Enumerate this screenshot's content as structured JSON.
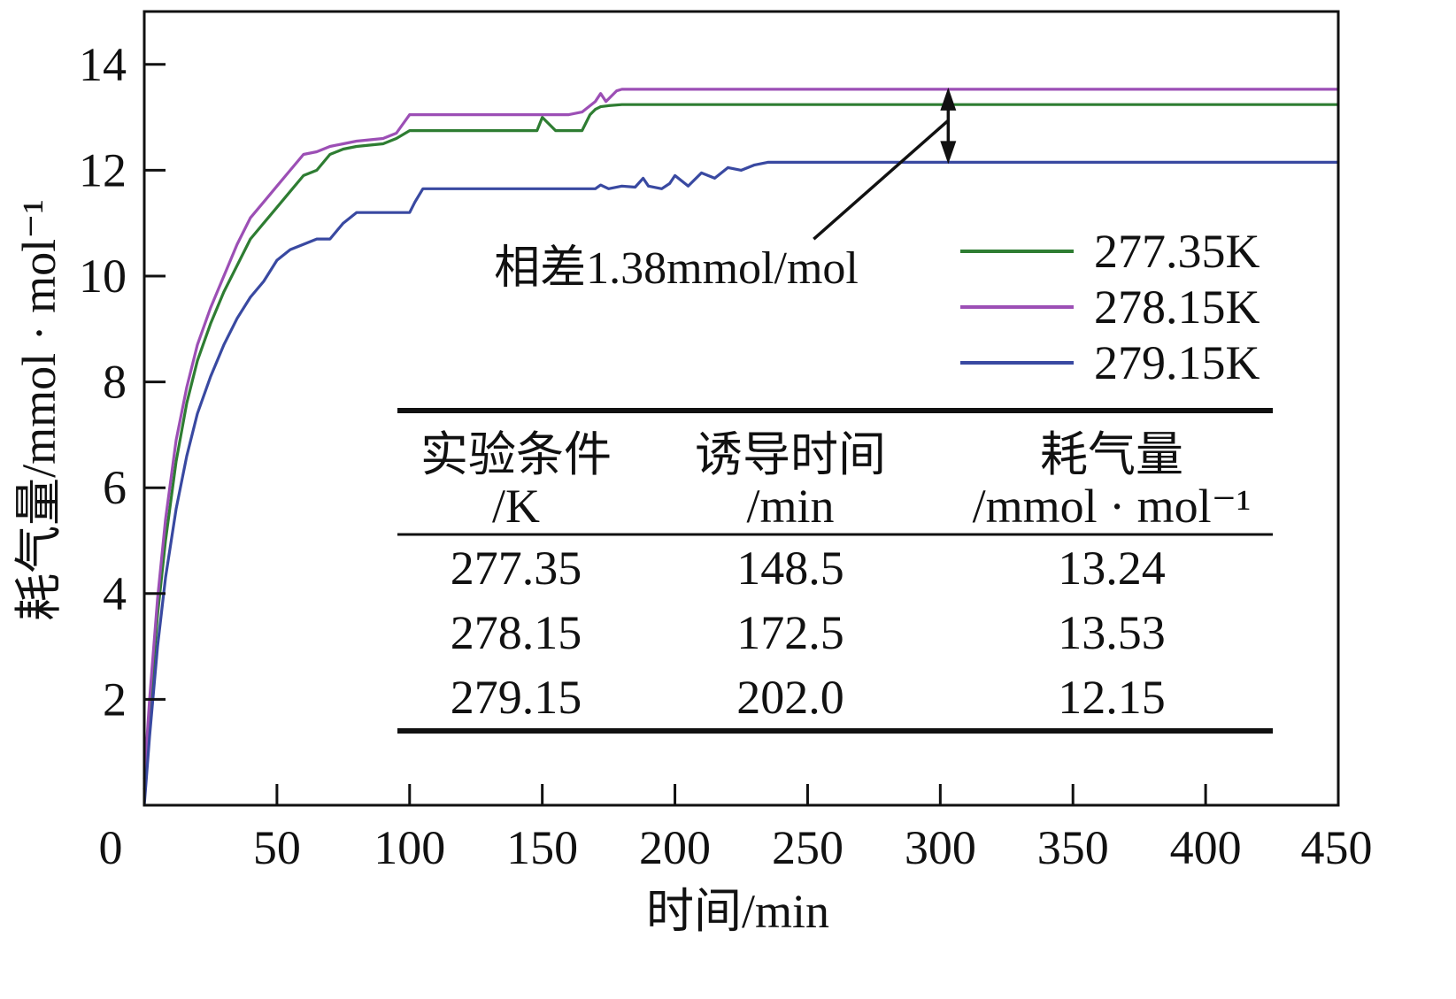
{
  "chart_data": {
    "type": "line",
    "title": "",
    "xlabel": "时间/min",
    "ylabel": "耗气量/mmol · mol⁻¹",
    "xlim": [
      0,
      450
    ],
    "ylim": [
      0,
      15
    ],
    "x_ticks": [
      0,
      50,
      100,
      150,
      200,
      250,
      300,
      350,
      400,
      450
    ],
    "y_ticks": [
      2,
      4,
      6,
      8,
      10,
      12,
      14
    ],
    "x_tick_labels": [
      "0",
      "50",
      "100",
      "150",
      "200",
      "250",
      "300",
      "350",
      "400",
      "450"
    ],
    "y_tick_labels": [
      "2",
      "4",
      "6",
      "8",
      "10",
      "12",
      "14"
    ],
    "legend_position": "right",
    "series": [
      {
        "name": "277.35K",
        "color": "#2e7d32",
        "x": [
          0,
          2,
          5,
          8,
          12,
          16,
          20,
          25,
          30,
          35,
          40,
          45,
          50,
          55,
          60,
          65,
          70,
          75,
          80,
          90,
          95,
          100,
          110,
          120,
          130,
          140,
          148,
          150,
          152,
          155,
          160,
          165,
          168,
          170,
          172,
          175,
          180,
          200,
          250,
          300,
          350,
          400,
          450
        ],
        "y": [
          0.3,
          1.8,
          3.6,
          5.0,
          6.5,
          7.6,
          8.4,
          9.1,
          9.7,
          10.2,
          10.7,
          11.0,
          11.3,
          11.6,
          11.9,
          12.0,
          12.3,
          12.4,
          12.45,
          12.5,
          12.6,
          12.75,
          12.75,
          12.75,
          12.75,
          12.75,
          12.75,
          13.0,
          12.9,
          12.75,
          12.75,
          12.75,
          13.05,
          13.15,
          13.2,
          13.22,
          13.24,
          13.24,
          13.24,
          13.24,
          13.24,
          13.24,
          13.24
        ]
      },
      {
        "name": "278.15K",
        "color": "#9c4fb5",
        "x": [
          0,
          2,
          5,
          8,
          12,
          16,
          20,
          25,
          30,
          35,
          40,
          45,
          50,
          55,
          60,
          65,
          70,
          75,
          80,
          90,
          95,
          100,
          110,
          120,
          130,
          140,
          150,
          160,
          165,
          170,
          172,
          174,
          176,
          178,
          180,
          200,
          250,
          300,
          350,
          400,
          450
        ],
        "y": [
          0.5,
          2.0,
          3.9,
          5.4,
          6.9,
          7.9,
          8.7,
          9.4,
          10.0,
          10.6,
          11.1,
          11.4,
          11.7,
          12.0,
          12.3,
          12.35,
          12.45,
          12.5,
          12.55,
          12.6,
          12.7,
          13.05,
          13.05,
          13.05,
          13.05,
          13.05,
          13.05,
          13.05,
          13.1,
          13.3,
          13.45,
          13.3,
          13.4,
          13.5,
          13.53,
          13.53,
          13.53,
          13.53,
          13.53,
          13.53,
          13.53
        ]
      },
      {
        "name": "279.15K",
        "color": "#3949a1",
        "x": [
          0,
          2,
          5,
          8,
          12,
          16,
          20,
          25,
          30,
          35,
          40,
          45,
          50,
          55,
          60,
          65,
          70,
          75,
          80,
          90,
          100,
          102,
          105,
          110,
          130,
          150,
          170,
          172,
          175,
          180,
          185,
          188,
          190,
          195,
          198,
          200,
          205,
          210,
          215,
          220,
          225,
          230,
          235,
          240,
          250,
          300,
          350,
          400,
          450
        ],
        "y": [
          0.0,
          1.3,
          3.0,
          4.3,
          5.6,
          6.6,
          7.4,
          8.1,
          8.7,
          9.2,
          9.6,
          9.9,
          10.3,
          10.5,
          10.6,
          10.7,
          10.7,
          11.0,
          11.2,
          11.2,
          11.2,
          11.4,
          11.65,
          11.65,
          11.65,
          11.65,
          11.65,
          11.72,
          11.65,
          11.7,
          11.68,
          11.85,
          11.7,
          11.65,
          11.75,
          11.9,
          11.7,
          11.95,
          11.85,
          12.05,
          12.0,
          12.1,
          12.15,
          12.15,
          12.15,
          12.15,
          12.15,
          12.15,
          12.15
        ]
      }
    ],
    "annotation": {
      "text": "相差1.38mmol/mol",
      "arrow_x": 303,
      "arrow_y_top": 13.53,
      "arrow_y_bottom": 12.15
    },
    "inset_table": {
      "headers": [
        {
          "line1": "实验条件",
          "line2": "/K"
        },
        {
          "line1": "诱导时间",
          "line2": "/min"
        },
        {
          "line1": "耗气量",
          "line2": "/mmol · mol⁻¹"
        }
      ],
      "rows": [
        [
          "277.35",
          "148.5",
          "13.24"
        ],
        [
          "278.15",
          "172.5",
          "13.53"
        ],
        [
          "279.15",
          "202.0",
          "12.15"
        ]
      ]
    }
  }
}
